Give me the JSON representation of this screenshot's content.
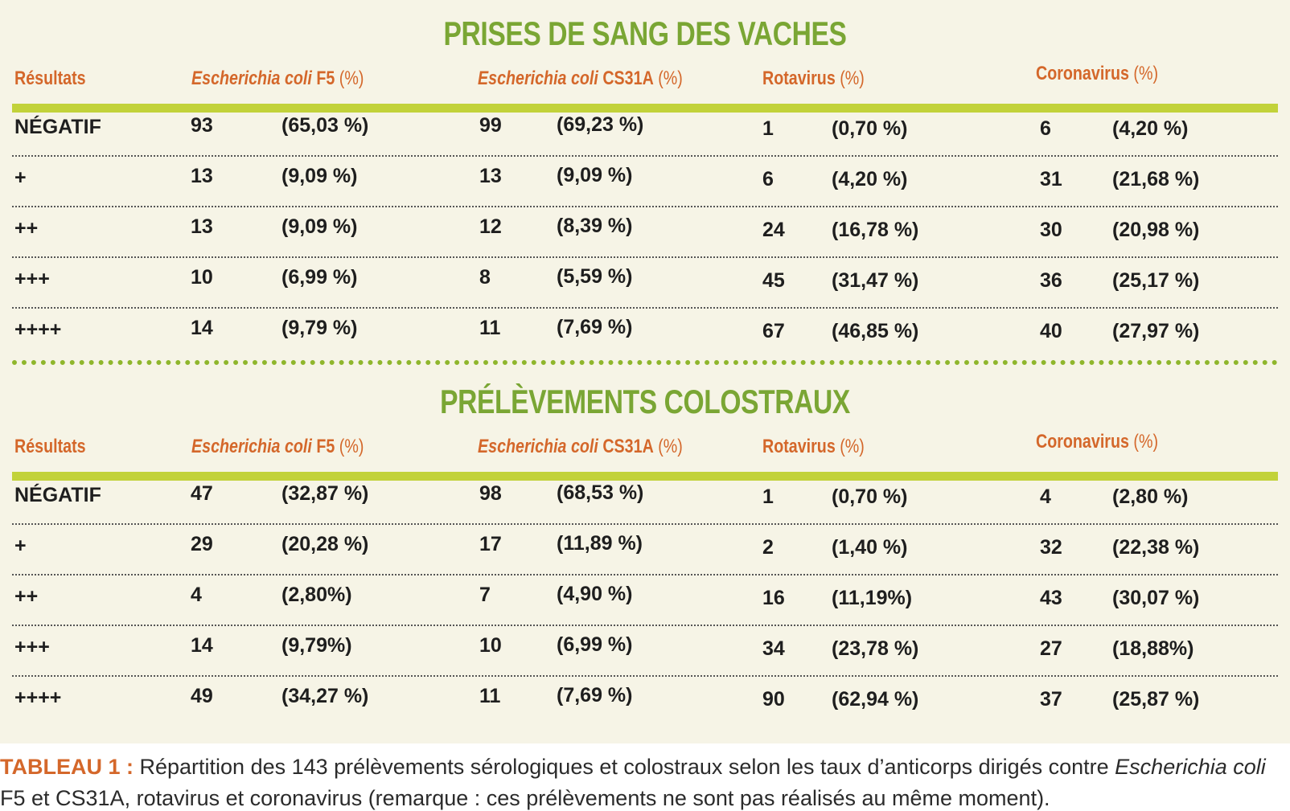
{
  "sections": [
    {
      "id": "blood",
      "title": "PRISES DE SANG DES VACHES",
      "headers": {
        "results": "Résultats",
        "ecoli_f5_italic": "Escherichia coli",
        "ecoli_f5_suffix": " F5",
        "ecoli_f5_unit": " (%)",
        "ecoli_cs31a_italic": "Escherichia coli",
        "ecoli_cs31a_suffix": " CS31A",
        "ecoli_cs31a_unit": " (%)",
        "rotavirus": "Rotavirus",
        "rotavirus_unit": " (%)",
        "coronavirus": "Coronavirus",
        "coronavirus_unit": " (%)"
      },
      "rows": [
        {
          "label": "NÉGATIF",
          "f5_n": "93",
          "f5_p": "(65,03 %)",
          "cs_n": "99",
          "cs_p": "(69,23 %)",
          "rota_n": "1",
          "rota_p": "(0,70 %)",
          "corona_n": "6",
          "corona_p": "(4,20 %)"
        },
        {
          "label": "+",
          "f5_n": "13",
          "f5_p": "(9,09 %)",
          "cs_n": "13",
          "cs_p": "(9,09 %)",
          "rota_n": "6",
          "rota_p": "(4,20 %)",
          "corona_n": "31",
          "corona_p": "(21,68 %)"
        },
        {
          "label": "++",
          "f5_n": "13",
          "f5_p": "(9,09 %)",
          "cs_n": "12",
          "cs_p": "(8,39 %)",
          "rota_n": "24",
          "rota_p": "(16,78 %)",
          "corona_n": "30",
          "corona_p": "(20,98 %)"
        },
        {
          "label": "+++",
          "f5_n": "10",
          "f5_p": "(6,99 %)",
          "cs_n": "8",
          "cs_p": "(5,59 %)",
          "rota_n": "45",
          "rota_p": "(31,47 %)",
          "corona_n": "36",
          "corona_p": "(25,17 %)"
        },
        {
          "label": "++++",
          "f5_n": "14",
          "f5_p": "(9,79 %)",
          "cs_n": "11",
          "cs_p": "(7,69 %)",
          "rota_n": "67",
          "rota_p": "(46,85 %)",
          "corona_n": "40",
          "corona_p": "(27,97 %)"
        }
      ]
    },
    {
      "id": "colostrum",
      "title": "PRÉLÈVEMENTS COLOSTRAUX",
      "headers": {
        "results": "Résultats",
        "ecoli_f5_italic": "Escherichia coli",
        "ecoli_f5_suffix": " F5",
        "ecoli_f5_unit": " (%)",
        "ecoli_cs31a_italic": "Escherichia coli",
        "ecoli_cs31a_suffix": " CS31A",
        "ecoli_cs31a_unit": " (%)",
        "rotavirus": "Rotavirus",
        "rotavirus_unit": " (%)",
        "coronavirus": "Coronavirus",
        "coronavirus_unit": " (%)"
      },
      "rows": [
        {
          "label": "NÉGATIF",
          "f5_n": "47",
          "f5_p": "(32,87 %)",
          "cs_n": "98",
          "cs_p": "(68,53 %)",
          "rota_n": "1",
          "rota_p": "(0,70 %)",
          "corona_n": "4",
          "corona_p": "(2,80 %)"
        },
        {
          "label": "+",
          "f5_n": "29",
          "f5_p": "(20,28 %)",
          "cs_n": "17",
          "cs_p": "(11,89 %)",
          "rota_n": "2",
          "rota_p": "(1,40 %)",
          "corona_n": "32",
          "corona_p": "(22,38 %)"
        },
        {
          "label": "++",
          "f5_n": "4",
          "f5_p": "(2,80%)",
          "cs_n": "7",
          "cs_p": "(4,90 %)",
          "rota_n": "16",
          "rota_p": "(11,19%)",
          "corona_n": "43",
          "corona_p": "(30,07 %)"
        },
        {
          "label": "+++",
          "f5_n": "14",
          "f5_p": "(9,79%)",
          "cs_n": "10",
          "cs_p": "(6,99 %)",
          "rota_n": "34",
          "rota_p": "(23,78 %)",
          "corona_n": "27",
          "corona_p": "(18,88%)"
        },
        {
          "label": "++++",
          "f5_n": "49",
          "f5_p": "(34,27 %)",
          "cs_n": "11",
          "cs_p": "(7,69 %)",
          "rota_n": "90",
          "rota_p": "(62,94 %)",
          "corona_n": "37",
          "corona_p": "(25,87 %)"
        }
      ]
    }
  ],
  "caption": {
    "label": "TABLEAU 1 :",
    "text_part1": " Répartition des 143 prélèvements sérologiques et colostraux selon les taux d’anticorps dirigés contre ",
    "italic": "Escherichia coli",
    "text_part2": " F5 et CS31A, rotavirus et coronavirus (remarque : ces prélèvements ne sont pas réalisés au même moment)."
  },
  "colors": {
    "title_green": "#7aa634",
    "header_orange": "#d4672a",
    "bar_yellow_green": "#c2d23a",
    "panel_beige": "#f6f4e6"
  }
}
